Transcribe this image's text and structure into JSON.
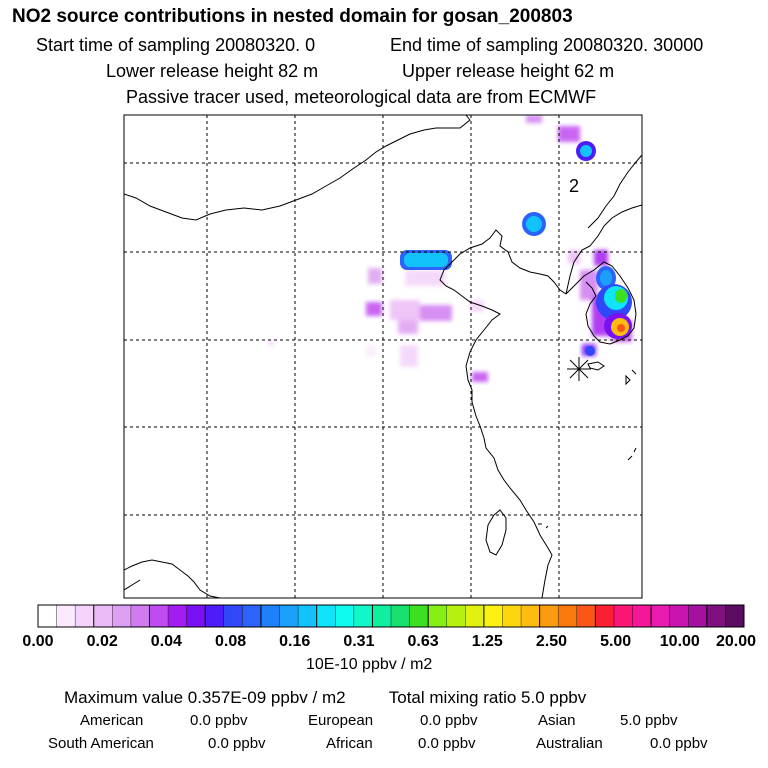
{
  "title": "NO2 source contributions in nested domain for gosan_200803",
  "sampling": {
    "start": "Start time of sampling 20080320.     0",
    "end": "End time of sampling 20080320. 30000"
  },
  "release": {
    "lower": "Lower release height   82 m",
    "upper": "Upper release height   62 m"
  },
  "note": "Passive tracer used, meteorological data are from ECMWF",
  "map": {
    "station_label": "2",
    "colors": {
      "border": "#000000",
      "grid": "#000000"
    }
  },
  "chart_data": {
    "type": "heatmap",
    "title": "NO2 source contributions in nested domain for gosan_200803",
    "colorbar": {
      "unit": "10E-10 ppbv / m2",
      "tick_labels": [
        "0.00",
        "0.02",
        "0.04",
        "0.08",
        "0.16",
        "0.31",
        "0.63",
        "1.25",
        "2.50",
        "5.00",
        "10.00",
        "20.00"
      ],
      "colors": [
        "#ffffff",
        "#fbeafd",
        "#f4d3fa",
        "#eabbf6",
        "#df9ff2",
        "#d07cf0",
        "#c04cf0",
        "#a41df0",
        "#7a10f4",
        "#4e1cf8",
        "#3148fa",
        "#2b63fb",
        "#1f80fb",
        "#1aa0fb",
        "#12c2fb",
        "#10e4fb",
        "#10fbf0",
        "#10f8c8",
        "#10ef9e",
        "#1ae070",
        "#3ce021",
        "#86f016",
        "#b6f010",
        "#e2f210",
        "#fcf110",
        "#fcd710",
        "#fcbd10",
        "#fb9b10",
        "#fb7a10",
        "#fb5618",
        "#fb1f34",
        "#fb1676",
        "#f71698",
        "#e81ab0",
        "#c914b0",
        "#a5119f",
        "#7e1080",
        "#5c0c60"
      ]
    },
    "grid": true
  },
  "footer": {
    "max_value": "Maximum value  0.357E-09 ppbv / m2",
    "total_mixing": "Total mixing ratio       5.0 ppbv",
    "american": "American",
    "american_v": "0.0 ppbv",
    "european": "European",
    "european_v": "0.0 ppbv",
    "asian": "Asian",
    "asian_v": "5.0 ppbv",
    "south_american": "South American",
    "south_american_v": "0.0 ppbv",
    "african": "African",
    "african_v": "0.0 ppbv",
    "australian": "Australian",
    "australian_v": "0.0 ppbv"
  }
}
